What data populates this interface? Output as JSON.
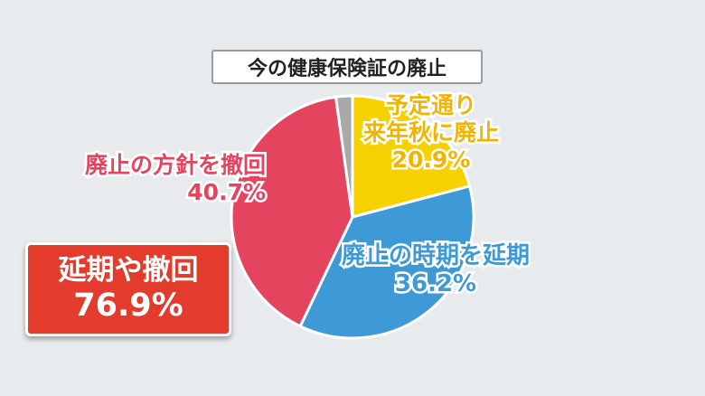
{
  "chart_data": {
    "type": "pie",
    "title": "今の健康保険証の廃止",
    "slices": [
      {
        "label_lines": [
          "予定通り",
          "来年秋に廃止"
        ],
        "value": 20.9,
        "value_text": "20.9%",
        "color": "#f7d000"
      },
      {
        "label_lines": [
          "廃止の時期を延期"
        ],
        "value": 36.2,
        "value_text": "36.2%",
        "color": "#3d9ad6"
      },
      {
        "label_lines": [
          "廃止の方針を撤回"
        ],
        "value": 40.7,
        "value_text": "40.7%",
        "color": "#e4445e"
      },
      {
        "label_lines": [],
        "value": 2.2,
        "value_text": "",
        "color": "#a9a9a9"
      }
    ]
  },
  "summary": {
    "line1": "延期や撤回",
    "line2": "76.9%",
    "color": "#e33c2c"
  }
}
